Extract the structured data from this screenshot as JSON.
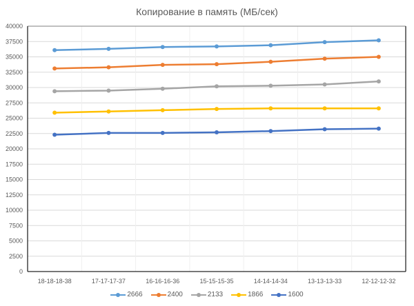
{
  "chart_data": {
    "type": "line",
    "title": "Копирование в память (МБ/сек)",
    "xlabel": "",
    "ylabel": "",
    "ylim": [
      0,
      40000
    ],
    "yticks": [
      0,
      2500,
      5000,
      7500,
      10000,
      12500,
      15000,
      17500,
      20000,
      22500,
      25000,
      27500,
      30000,
      32500,
      35000,
      37500,
      40000
    ],
    "grid": true,
    "legend_position": "bottom",
    "categories": [
      "18-18-18-38",
      "17-17-17-37",
      "16-16-16-36",
      "15-15-15-35",
      "14-14-14-34",
      "13-13-13-33",
      "12-12-12-32"
    ],
    "series": [
      {
        "name": "2666",
        "color": "#5b9bd5",
        "values": [
          36100,
          36300,
          36600,
          36700,
          36900,
          37400,
          37700
        ]
      },
      {
        "name": "2400",
        "color": "#ed7d31",
        "values": [
          33100,
          33300,
          33700,
          33800,
          34200,
          34700,
          35000
        ]
      },
      {
        "name": "2133",
        "color": "#a5a5a5",
        "values": [
          29400,
          29500,
          29800,
          30200,
          30300,
          30500,
          31000
        ]
      },
      {
        "name": "1866",
        "color": "#ffc000",
        "values": [
          25900,
          26100,
          26300,
          26500,
          26600,
          26600,
          26600
        ]
      },
      {
        "name": "1600",
        "color": "#4472c4",
        "values": [
          22300,
          22600,
          22600,
          22700,
          22900,
          23200,
          23300
        ]
      }
    ]
  }
}
